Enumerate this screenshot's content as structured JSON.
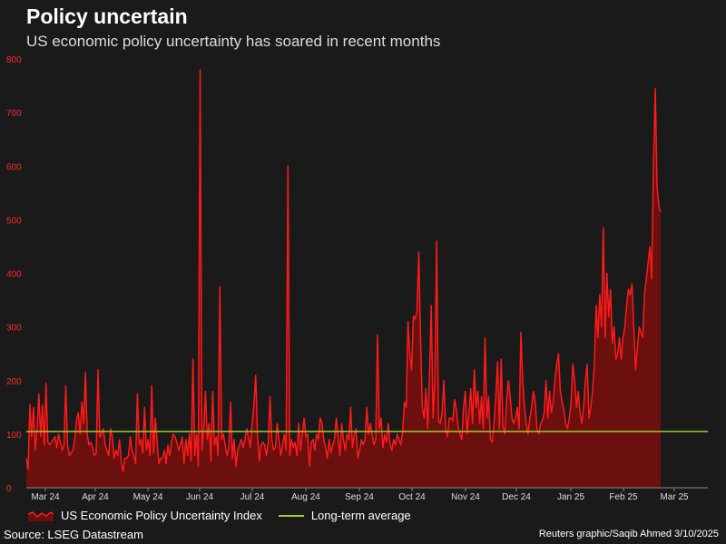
{
  "title": "Policy uncertain",
  "subtitle": "US economic policy uncertainty has soared in recent months",
  "footer": {
    "source": "Source: LSEG Datastream",
    "credit": "Reuters graphic/Saqib Ahmed 3/10/2025"
  },
  "colors": {
    "background": "#1a1a1a",
    "series_line": "#ff1a1a",
    "series_fill": "#6b0f0f",
    "average_line": "#9acd32",
    "tick_label_y": "#ff2a2a",
    "tick_label_x": "#dddddd",
    "axis": "#888888"
  },
  "chart_data": {
    "type": "area",
    "xlabel": "",
    "ylabel": "",
    "ylim": [
      0,
      800
    ],
    "y_ticks": [
      "0",
      "100",
      "200",
      "300",
      "400",
      "500",
      "600",
      "700",
      "800"
    ],
    "x_ticks": [
      "Mar 24",
      "Apr 24",
      "May 24",
      "Jun 24",
      "Jul 24",
      "Aug 24",
      "Sep 24",
      "Oct 24",
      "Nov 24",
      "Dec 24",
      "Jan 25",
      "Feb 25",
      "Mar 25"
    ],
    "grid": false,
    "legend_position": "bottom-left",
    "series": [
      {
        "name": "US Economic Policy Uncertainty Index",
        "kind": "area",
        "start_date": "2024-02-25",
        "end_date": "2025-03-10",
        "values": [
          55,
          35,
          155,
          95,
          150,
          70,
          110,
          175,
          95,
          155,
          80,
          195,
          85,
          80,
          85,
          90,
          95,
          75,
          100,
          85,
          70,
          80,
          190,
          80,
          60,
          65,
          70,
          90,
          125,
          140,
          100,
          160,
          120,
          215,
          100,
          80,
          85,
          75,
          60,
          65,
          220,
          95,
          100,
          110,
          80,
          70,
          60,
          110,
          95,
          55,
          70,
          60,
          90,
          50,
          30,
          55,
          55,
          60,
          95,
          70,
          60,
          45,
          175,
          80,
          90,
          65,
          150,
          70,
          90,
          60,
          190,
          65,
          130,
          85,
          45,
          55,
          55,
          70,
          45,
          80,
          60,
          85,
          100,
          95,
          85,
          70,
          80,
          95,
          45,
          90,
          60,
          100,
          50,
          240,
          60,
          100,
          40,
          780,
          70,
          110,
          180,
          90,
          120,
          50,
          180,
          80,
          95,
          60,
          375,
          90,
          100,
          80,
          60,
          75,
          160,
          55,
          90,
          40,
          70,
          80,
          90,
          75,
          90,
          110,
          95,
          75,
          120,
          155,
          210,
          100,
          50,
          80,
          85,
          80,
          60,
          85,
          170,
          90,
          70,
          75,
          120,
          90,
          60,
          80,
          100,
          70,
          600,
          60,
          90,
          75,
          85,
          60,
          120,
          70,
          100,
          130,
          95,
          100,
          40,
          85,
          90,
          70,
          100,
          90,
          130,
          120,
          90,
          75,
          55,
          90,
          65,
          80,
          90,
          130,
          95,
          60,
          120,
          90,
          70,
          100,
          90,
          150,
          75,
          100,
          110,
          55,
          70,
          90,
          80,
          90,
          150,
          100,
          120,
          100,
          80,
          90,
          285,
          110,
          130,
          75,
          100,
          85,
          120,
          80,
          70,
          90,
          80,
          100,
          90,
          80,
          105,
          160,
          150,
          310,
          250,
          220,
          320,
          315,
          330,
          440,
          280,
          150,
          130,
          185,
          110,
          210,
          340,
          130,
          200,
          460,
          125,
          120,
          140,
          200,
          110,
          95,
          130,
          130,
          125,
          165,
          145,
          115,
          100,
          90,
          150,
          180,
          100,
          140,
          185,
          120,
          220,
          150,
          180,
          120,
          170,
          110,
          280,
          130,
          170,
          90,
          85,
          120,
          170,
          235,
          110,
          240,
          115,
          100,
          160,
          200,
          170,
          130,
          120,
          130,
          150,
          110,
          290,
          200,
          150,
          120,
          100,
          130,
          150,
          180,
          160,
          110,
          100,
          120,
          125,
          140,
          200,
          130,
          180,
          140,
          160,
          200,
          230,
          250,
          180,
          160,
          145,
          120,
          110,
          130,
          160,
          230,
          200,
          150,
          180,
          140,
          120,
          150,
          200,
          230,
          130,
          150,
          180,
          230,
          340,
          280,
          360,
          300,
          485,
          280,
          400,
          320,
          370,
          270,
          300,
          240,
          250,
          280,
          240,
          280,
          300,
          340,
          370,
          360,
          380,
          300,
          220,
          260,
          300,
          290,
          280,
          360,
          390,
          420,
          450,
          390,
          600,
          745,
          560,
          525,
          515
        ]
      },
      {
        "name": "Long-term average",
        "kind": "line",
        "value": 105
      }
    ]
  }
}
